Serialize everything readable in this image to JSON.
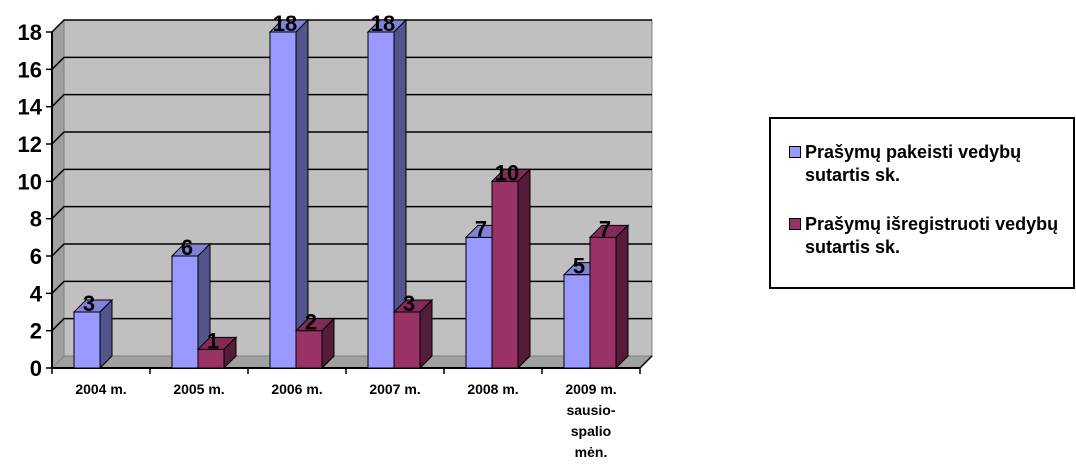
{
  "chart_data": {
    "type": "bar",
    "categories": [
      "2004 m.",
      "2005 m.",
      "2006 m.",
      "2007 m.",
      "2008 m.",
      "2009 m. sausio-spalio mėn."
    ],
    "category_lines": [
      [
        "2004 m."
      ],
      [
        "2005 m."
      ],
      [
        "2006 m."
      ],
      [
        "2007 m."
      ],
      [
        "2008 m."
      ],
      [
        "2009 m.",
        "sausio-",
        "spalio",
        "mėn."
      ]
    ],
    "series": [
      {
        "name": "Prašymų pakeisti vedybų sutartis sk.",
        "values": [
          3,
          6,
          18,
          18,
          7,
          5
        ],
        "color": "#9999ff"
      },
      {
        "name": "Prašymų išregistruoti vedybų sutartis sk.",
        "values": [
          null,
          1,
          2,
          3,
          10,
          7
        ],
        "color": "#993366"
      }
    ],
    "ylim": [
      0,
      18
    ],
    "yticks": [
      0,
      2,
      4,
      6,
      8,
      10,
      12,
      14,
      16,
      18
    ],
    "grid": true,
    "legend_position": "right",
    "plot_background": "#c0c0c0",
    "three_d": true
  }
}
